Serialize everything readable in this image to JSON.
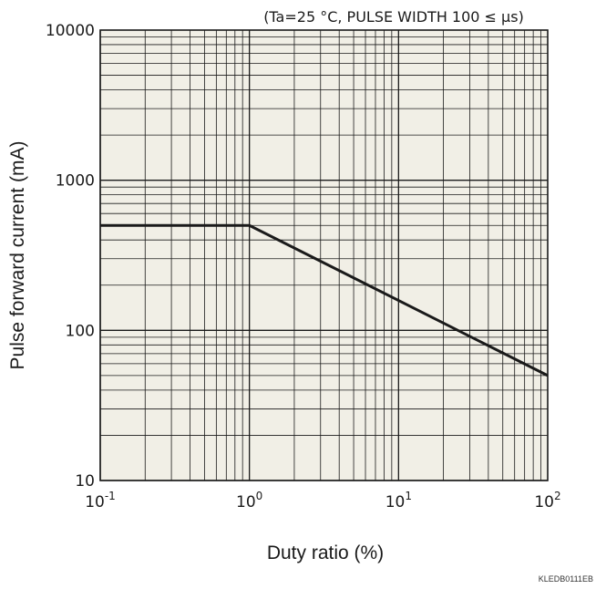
{
  "chart_data": {
    "type": "line",
    "annotation": "(Ta=25 °C, PULSE WIDTH 100 ≤ μs)",
    "xlabel": "Duty ratio (%)",
    "ylabel": "Pulse forward current (mA)",
    "xscale": "log",
    "yscale": "log",
    "xlim": [
      0.1,
      100
    ],
    "ylim": [
      10,
      10000
    ],
    "x_ticks": [
      {
        "value": 0.1,
        "base": "10",
        "exp": "-1"
      },
      {
        "value": 1,
        "base": "10",
        "exp": "0"
      },
      {
        "value": 10,
        "base": "10",
        "exp": "1"
      },
      {
        "value": 100,
        "base": "10",
        "exp": "2"
      }
    ],
    "y_ticks": [
      {
        "value": 10,
        "label": "10"
      },
      {
        "value": 100,
        "label": "100"
      },
      {
        "value": 1000,
        "label": "1000"
      },
      {
        "value": 10000,
        "label": "10000"
      }
    ],
    "grid": true,
    "series": [
      {
        "x": [
          0.1,
          1,
          100
        ],
        "y": [
          500,
          500,
          50
        ]
      }
    ]
  },
  "footer": {
    "code": "KLEDB0111EB"
  },
  "colors": {
    "plot_background": "#f1efe6",
    "line": "#1a1a1a",
    "grid": "#1a1a1a"
  }
}
